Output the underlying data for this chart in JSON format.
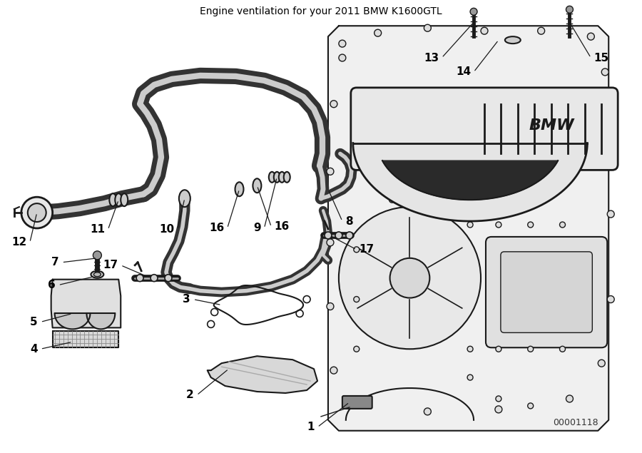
{
  "title": "Engine ventilation for your 2011 BMW K1600GTL",
  "diagram_id": "00001118",
  "bg": "#ffffff",
  "lc": "#1a1a1a",
  "fig_w": 9.0,
  "fig_h": 6.35,
  "dpi": 100
}
